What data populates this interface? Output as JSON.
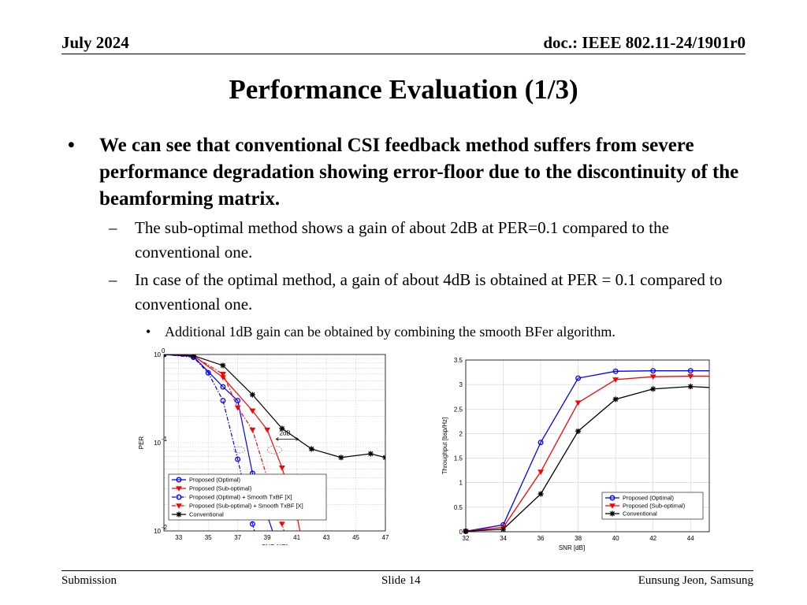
{
  "header": {
    "date": "July 2024",
    "doc": "doc.: IEEE 802.11-24/1901r0"
  },
  "title": "Performance Evaluation (1/3)",
  "bullets": {
    "main": "We can see that conventional CSI feedback method suffers from severe performance degradation showing error-floor due to the discontinuity of the beamforming matrix.",
    "sub1": "The sub-optimal method shows a gain of about 2dB at PER=0.1 compared to the conventional one.",
    "sub2": "In case of the optimal method, a gain of about 4dB is obtained at PER = 0.1 compared to conventional one.",
    "subsub1": "Additional 1dB gain can be obtained by combining the smooth BFer algorithm.",
    "marker_l1": "•",
    "marker_l2": "–",
    "marker_l3": "•"
  },
  "chart_data": [
    {
      "type": "line",
      "xlabel": "SNR [dB]",
      "ylabel": "PER",
      "yscale": "log",
      "xlim": [
        32,
        47
      ],
      "ylim": [
        0.01,
        1
      ],
      "xticks": [
        33,
        35,
        37,
        39,
        41,
        43,
        45,
        47
      ],
      "yticks": [
        {
          "v": 1,
          "label": "10"
        },
        {
          "v": 0.1,
          "label": "10"
        },
        {
          "v": 0.01,
          "label": "10"
        }
      ],
      "ytick_exponents": [
        "0",
        "-1",
        "-2"
      ],
      "grid": true,
      "legend_position": "bottom-left",
      "annotation": "2dB",
      "series": [
        {
          "name": "Proposed (Optimal)",
          "color": "#0000ff",
          "marker": "circle",
          "dash": "solid",
          "x": [
            32,
            34,
            36,
            37,
            38,
            39,
            39.8
          ],
          "y": [
            1,
            0.95,
            0.43,
            0.3,
            0.045,
            0.015,
            0.006
          ]
        },
        {
          "name": "Proposed (Sub-optimal)",
          "color": "#ff0000",
          "marker": "triangle",
          "dash": "solid",
          "x": [
            32,
            34,
            36,
            38,
            39,
            40,
            41,
            41.4
          ],
          "y": [
            1,
            0.97,
            0.55,
            0.23,
            0.14,
            0.052,
            0.015,
            0.007
          ]
        },
        {
          "name": "Proposed (Optimal) + Smooth TxBF [X]",
          "color": "#0000ff",
          "marker": "circle",
          "dash": "dashdot",
          "x": [
            32,
            34,
            35,
            36,
            37,
            38,
            38.5
          ],
          "y": [
            1,
            0.93,
            0.62,
            0.3,
            0.065,
            0.012,
            0.006
          ]
        },
        {
          "name": "Proposed (Sub-optimal) + Smooth TxBF [X]",
          "color": "#ff0000",
          "marker": "triangle",
          "dash": "dashdot",
          "x": [
            32,
            34,
            36,
            37,
            38,
            39,
            40,
            40.4
          ],
          "y": [
            1,
            0.96,
            0.6,
            0.25,
            0.14,
            0.04,
            0.012,
            0.007
          ]
        },
        {
          "name": "Conventional",
          "color": "#000000",
          "marker": "star",
          "dash": "solid",
          "x": [
            32,
            34,
            36,
            38,
            40,
            42,
            44,
            46,
            47
          ],
          "y": [
            1,
            0.97,
            0.75,
            0.35,
            0.145,
            0.085,
            0.068,
            0.075,
            0.068
          ]
        }
      ]
    },
    {
      "type": "line",
      "xlabel": "SNR [dB]",
      "ylabel": "Throughput [bsp/Hz]",
      "xlim": [
        32,
        45
      ],
      "ylim": [
        0,
        3.5
      ],
      "xticks": [
        32,
        34,
        36,
        38,
        40,
        42,
        44
      ],
      "yticks": [
        0,
        0.5,
        1,
        1.5,
        2,
        2.5,
        3,
        3.5
      ],
      "grid": true,
      "legend_position": "bottom-right",
      "series": [
        {
          "name": "Proposed (Optimal)",
          "color": "#0000ff",
          "marker": "circle",
          "x": [
            32,
            34,
            36,
            38,
            40,
            42,
            44,
            45
          ],
          "y": [
            0.01,
            0.14,
            1.82,
            3.13,
            3.27,
            3.28,
            3.28,
            3.28
          ]
        },
        {
          "name": "Proposed (Sub-optimal)",
          "color": "#ff0000",
          "marker": "triangle",
          "x": [
            32,
            34,
            36,
            38,
            40,
            42,
            44,
            45
          ],
          "y": [
            0.01,
            0.09,
            1.22,
            2.63,
            3.1,
            3.16,
            3.17,
            3.17
          ]
        },
        {
          "name": "Conventional",
          "color": "#000000",
          "marker": "star",
          "x": [
            32,
            34,
            36,
            38,
            40,
            42,
            44,
            45
          ],
          "y": [
            0.01,
            0.05,
            0.77,
            2.05,
            2.7,
            2.91,
            2.96,
            2.94
          ]
        }
      ]
    }
  ],
  "footer": {
    "left": "Submission",
    "center": "Slide 14",
    "right": "Eunsung Jeon, Samsung"
  }
}
